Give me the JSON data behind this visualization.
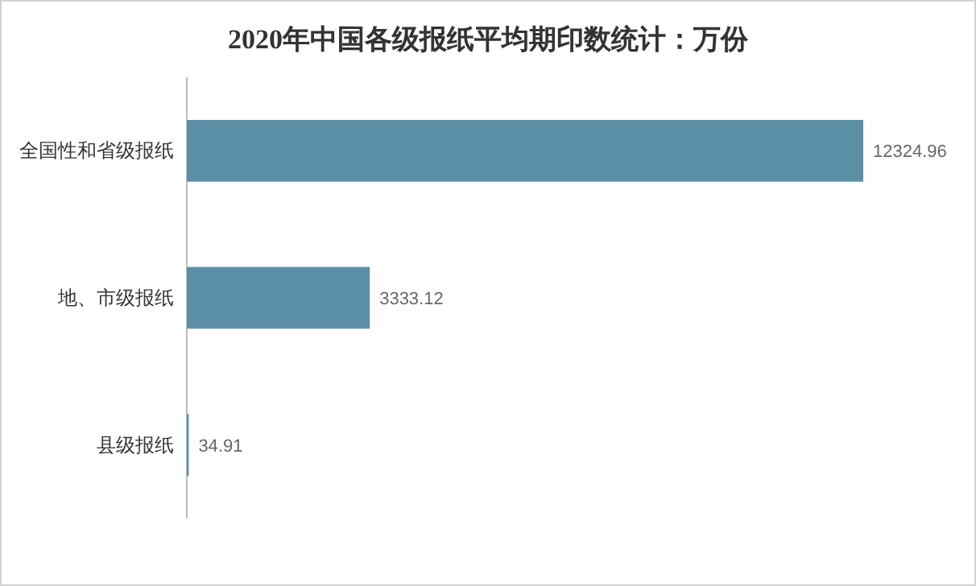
{
  "chart_data": {
    "type": "bar",
    "orientation": "horizontal",
    "title": "2020年中国各级报纸平均期印数统计：万份",
    "categories": [
      "全国性和省级报纸",
      "地、市级报纸",
      "县级报纸"
    ],
    "values": [
      12324.96,
      3333.12,
      34.91
    ],
    "color": "#5b8fa6",
    "data_labels": true,
    "tick_labels": "y"
  }
}
